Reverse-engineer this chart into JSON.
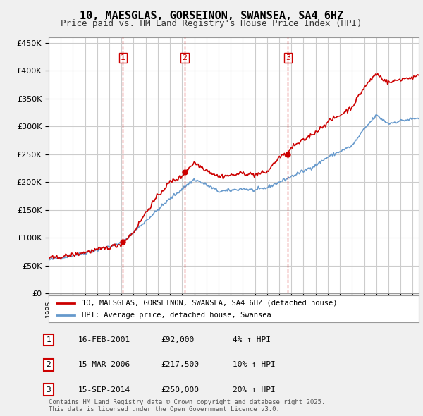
{
  "title": "10, MAESGLAS, GORSEINON, SWANSEA, SA4 6HZ",
  "subtitle": "Price paid vs. HM Land Registry's House Price Index (HPI)",
  "ylabel_ticks": [
    "£0",
    "£50K",
    "£100K",
    "£150K",
    "£200K",
    "£250K",
    "£300K",
    "£350K",
    "£400K",
    "£450K"
  ],
  "ytick_vals": [
    0,
    50000,
    100000,
    150000,
    200000,
    250000,
    300000,
    350000,
    400000,
    450000
  ],
  "ylim": [
    0,
    460000
  ],
  "xlim_start": 1995.0,
  "xlim_end": 2025.5,
  "background_color": "#f0f0f0",
  "plot_bg_color": "#ffffff",
  "grid_color": "#cccccc",
  "sale1_date": 2001.125,
  "sale1_price": 92000,
  "sale2_date": 2006.208,
  "sale2_price": 217500,
  "sale3_date": 2014.708,
  "sale3_price": 250000,
  "sale_marker_color": "#cc0000",
  "vline_color": "#cc0000",
  "hpi_line_color": "#6699cc",
  "price_line_color": "#cc0000",
  "legend_label1": "10, MAESGLAS, GORSEINON, SWANSEA, SA4 6HZ (detached house)",
  "legend_label2": "HPI: Average price, detached house, Swansea",
  "table_entries": [
    {
      "num": "1",
      "date": "16-FEB-2001",
      "price": "£92,000",
      "hpi": "4% ↑ HPI"
    },
    {
      "num": "2",
      "date": "15-MAR-2006",
      "price": "£217,500",
      "hpi": "10% ↑ HPI"
    },
    {
      "num": "3",
      "date": "15-SEP-2014",
      "price": "£250,000",
      "hpi": "20% ↑ HPI"
    }
  ],
  "footnote": "Contains HM Land Registry data © Crown copyright and database right 2025.\nThis data is licensed under the Open Government Licence v3.0."
}
